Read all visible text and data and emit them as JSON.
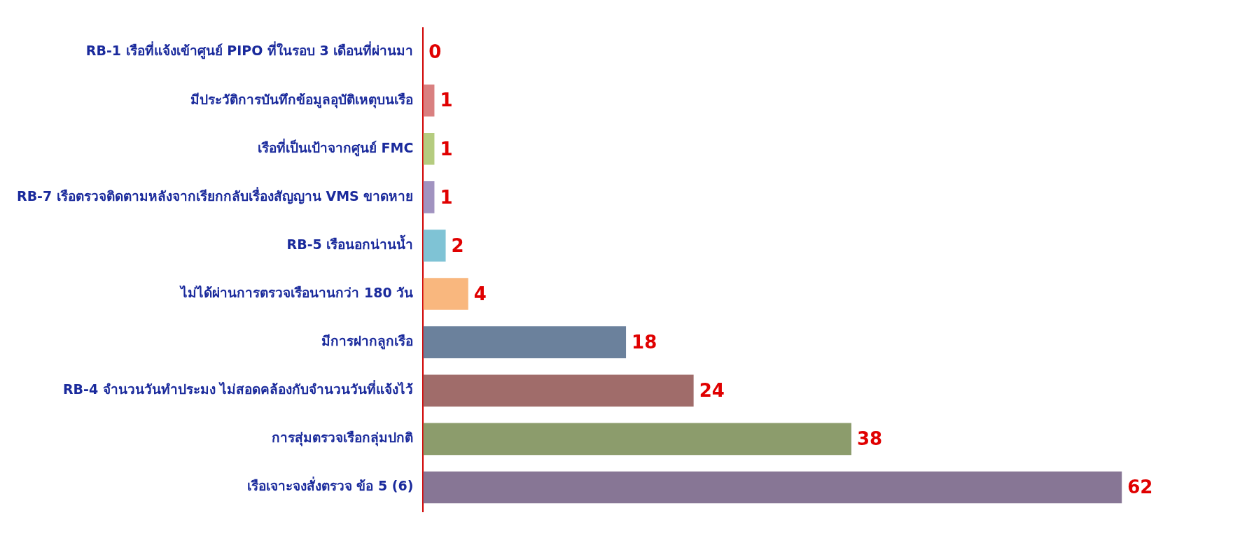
{
  "chart_data": {
    "type": "bar",
    "orientation": "horizontal",
    "categories": [
      "RB-1 เรือที่แจ้งเข้าศูนย์ PIPO ที่ในรอบ 3 เดือนที่ผ่านมา",
      "มีประวัติการบันทึกข้อมูลอุบัติเหตุบนเรือ",
      "เรือที่เป็นเป้าจากศูนย์ FMC",
      "RB-7 เรือตรวจติดตามหลังจากเรียกกลับเรื่องสัญญาน VMS ขาดหาย",
      "RB-5 เรือนอกน่านน้ำ",
      "ไม่ได้ผ่านการตรวจเรือนานกว่า 180 วัน",
      "มีการฝากลูกเรือ",
      "RB-4 จำนวนวันทำประมง ไม่สอดคล้องกับจำนวนวันที่แจ้งไว้",
      "การสุ่มตรวจเรือกลุ่มปกติ",
      "เรือเจาะจงสั่งตรวจ ข้อ 5 (6)"
    ],
    "values": [
      0,
      1,
      1,
      1,
      2,
      4,
      18,
      24,
      38,
      62
    ],
    "colors": [
      "#4f81bd",
      "#d98080",
      "#b5cc7f",
      "#a193c0",
      "#7fc3d5",
      "#f9b77e",
      "#6b819c",
      "#a06c6a",
      "#8c9c6c",
      "#877695"
    ],
    "data_labels": true,
    "legend": false
  }
}
